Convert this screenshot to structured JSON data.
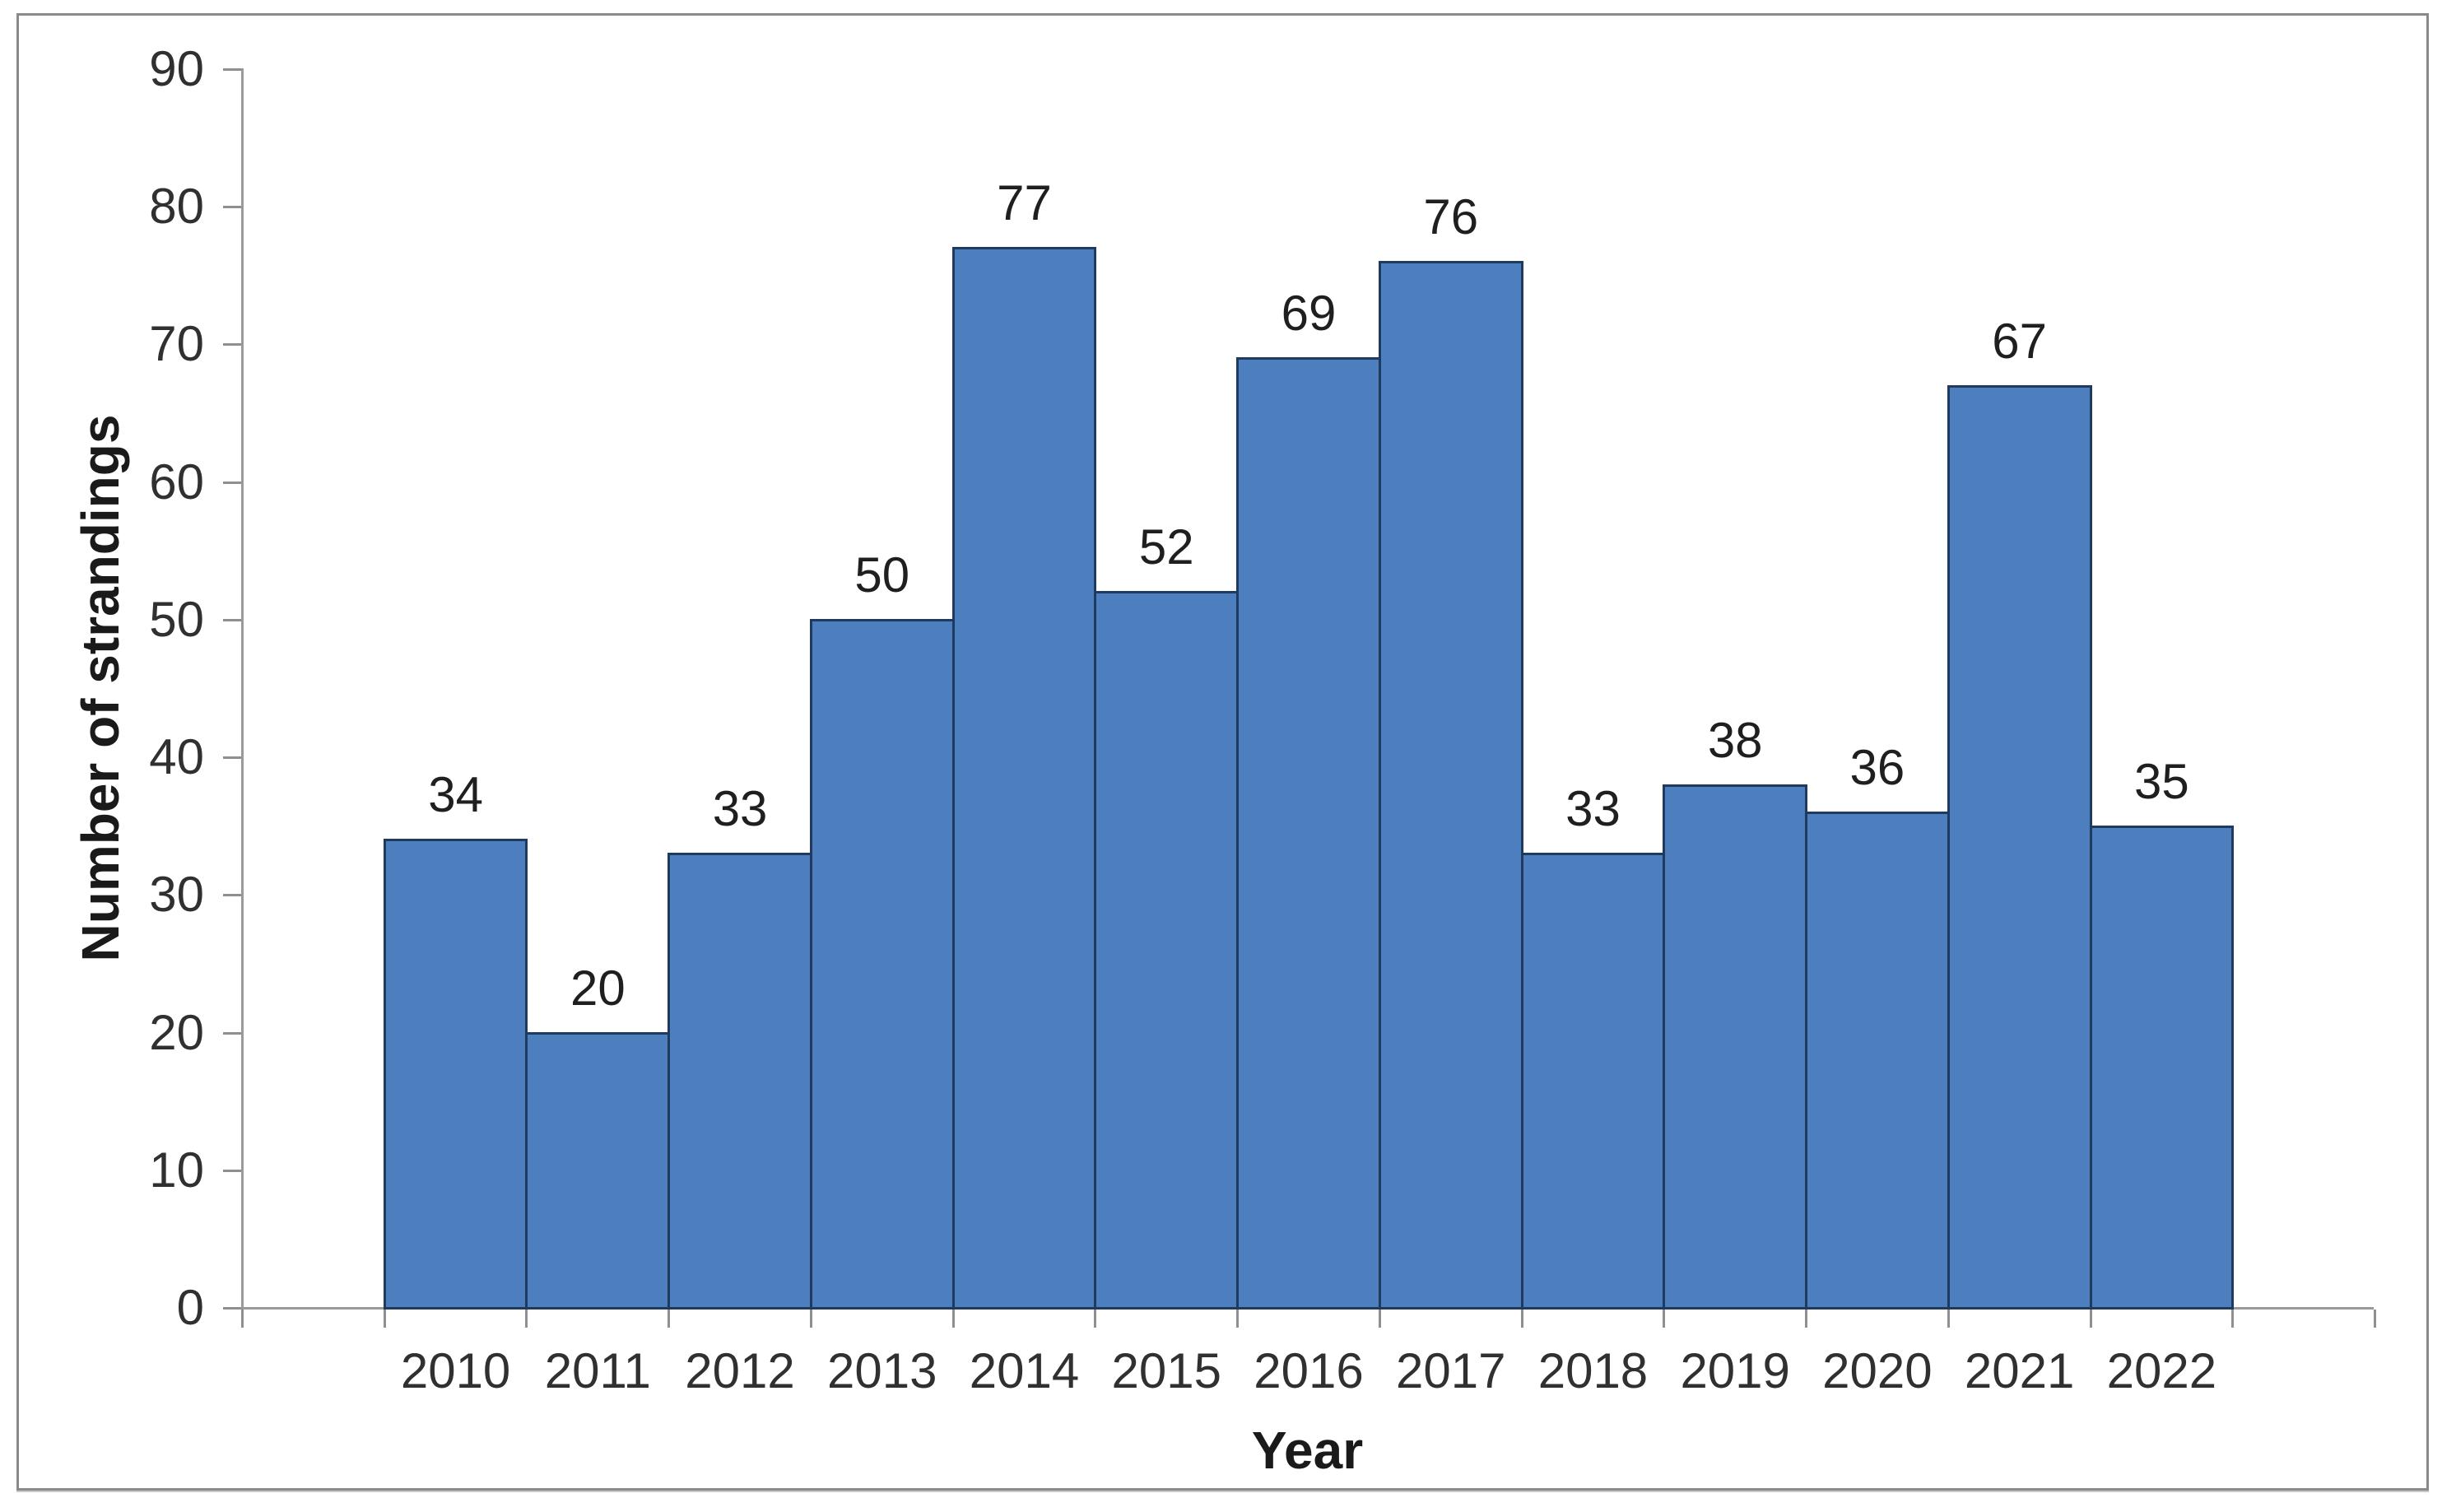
{
  "figure": {
    "background": "#ffffff",
    "frame_color": "#8a8a8a"
  },
  "chart_data": {
    "type": "bar",
    "title": "",
    "xlabel": "Year",
    "ylabel": "Number of strandings",
    "categories": [
      "2010",
      "2011",
      "2012",
      "2013",
      "2014",
      "2015",
      "2016",
      "2017",
      "2018",
      "2019",
      "2020",
      "2021",
      "2022"
    ],
    "values": [
      34,
      20,
      33,
      50,
      77,
      52,
      69,
      76,
      33,
      38,
      36,
      67,
      35
    ],
    "data_labels": [
      "34",
      "20",
      "33",
      "50",
      "77",
      "52",
      "69",
      "76",
      "33",
      "38",
      "36",
      "67",
      "35"
    ],
    "ytick_labels": [
      "0",
      "10",
      "20",
      "30",
      "40",
      "50",
      "60",
      "70",
      "80",
      "90"
    ],
    "ylim": [
      0,
      90
    ],
    "ytick_interval": 10,
    "grid": "off",
    "legend": "none",
    "bar_gap": 0,
    "empty_edge_slots": 1,
    "colors": {
      "bar_fill": "#4d7ebd",
      "bar_border": "#1f3a5f",
      "axis_line": "#9a9a9a",
      "tick_mark": "#8f8f8f",
      "tick_label": "#303030",
      "data_label": "#1f1f1f",
      "axis_title": "#1a1a1a"
    }
  }
}
